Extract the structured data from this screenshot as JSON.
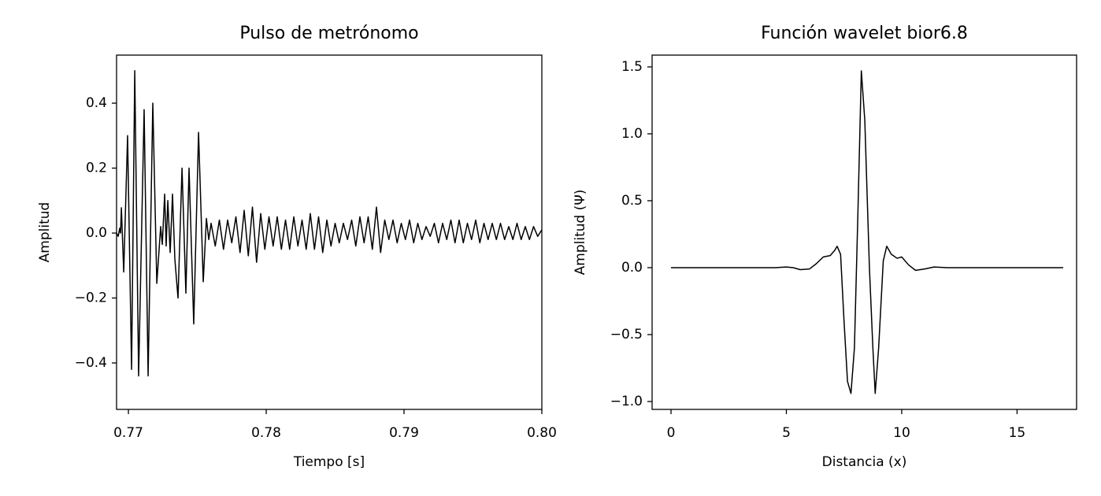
{
  "chart_data": [
    {
      "type": "line",
      "title": "Pulso de metrónomo",
      "x_label": "Tiempo [s]",
      "y_label": "Amplitud",
      "color": "#000000",
      "xlim": [
        0.76914,
        0.8
      ],
      "ylim": [
        -0.543,
        0.548
      ],
      "xticks": [
        0.77,
        0.78,
        0.79,
        {
          "value": 0.8,
          "label": "0.80"
        }
      ],
      "yticks": [
        {
          "value": -0.4,
          "label": "−0.4"
        },
        {
          "value": -0.2,
          "label": "−0.2"
        },
        {
          "value": 0,
          "label": "0.0"
        },
        0.2,
        0.4
      ],
      "x": [
        0.76914,
        0.76926,
        0.76937,
        0.76943,
        0.76949,
        0.76966,
        0.76994,
        0.77023,
        0.77046,
        0.77074,
        0.77114,
        0.77143,
        0.77177,
        0.77206,
        0.77234,
        0.77246,
        0.77263,
        0.77274,
        0.77286,
        0.77303,
        0.7732,
        0.77337,
        0.7736,
        0.77389,
        0.77417,
        0.7744,
        0.77474,
        0.77509,
        0.77543,
        0.77566,
        0.77583,
        0.776,
        0.7763,
        0.7766,
        0.7769,
        0.7772,
        0.7775,
        0.7778,
        0.7781,
        0.7784,
        0.7787,
        0.779,
        0.7793,
        0.7796,
        0.7799,
        0.7802,
        0.7805,
        0.7808,
        0.7811,
        0.7814,
        0.7817,
        0.782,
        0.7823,
        0.7826,
        0.7829,
        0.7832,
        0.7835,
        0.7838,
        0.7841,
        0.7844,
        0.7847,
        0.785,
        0.7853,
        0.7856,
        0.7859,
        0.7862,
        0.7865,
        0.7868,
        0.7871,
        0.7874,
        0.7877,
        0.788,
        0.7883,
        0.7886,
        0.7889,
        0.7892,
        0.7895,
        0.7898,
        0.7901,
        0.7904,
        0.7907,
        0.791,
        0.7913,
        0.7916,
        0.7919,
        0.7922,
        0.7925,
        0.7928,
        0.7931,
        0.7934,
        0.7937,
        0.794,
        0.7943,
        0.7946,
        0.7949,
        0.7952,
        0.7955,
        0.7958,
        0.7961,
        0.7964,
        0.7967,
        0.797,
        0.7973,
        0.7976,
        0.7979,
        0.7982,
        0.7985,
        0.7988,
        0.7991,
        0.7994,
        0.7997,
        0.8
      ],
      "values": [
        0,
        -0.01,
        0.015,
        0,
        0.078,
        -0.12,
        0.3,
        -0.42,
        0.5,
        -0.44,
        0.38,
        -0.44,
        0.4,
        -0.155,
        0.02,
        -0.035,
        0.12,
        -0.04,
        0.1,
        -0.06,
        0.12,
        -0.08,
        -0.2,
        0.2,
        -0.185,
        0.2,
        -0.28,
        0.31,
        -0.15,
        0.045,
        -0.02,
        0.03,
        -0.04,
        0.04,
        -0.05,
        0.04,
        -0.03,
        0.05,
        -0.06,
        0.07,
        -0.07,
        0.08,
        -0.09,
        0.06,
        -0.05,
        0.05,
        -0.04,
        0.05,
        -0.05,
        0.04,
        -0.05,
        0.05,
        -0.04,
        0.04,
        -0.05,
        0.06,
        -0.05,
        0.05,
        -0.06,
        0.04,
        -0.04,
        0.03,
        -0.03,
        0.03,
        -0.02,
        0.04,
        -0.04,
        0.05,
        -0.03,
        0.05,
        -0.05,
        0.08,
        -0.06,
        0.04,
        -0.02,
        0.04,
        -0.03,
        0.03,
        -0.02,
        0.04,
        -0.03,
        0.03,
        -0.02,
        0.02,
        -0.01,
        0.03,
        -0.03,
        0.03,
        -0.02,
        0.04,
        -0.03,
        0.04,
        -0.03,
        0.03,
        -0.02,
        0.04,
        -0.03,
        0.03,
        -0.02,
        0.03,
        -0.02,
        0.03,
        -0.02,
        0.02,
        -0.02,
        0.03,
        -0.02,
        0.02,
        -0.02,
        0.02,
        -0.01,
        0.01
      ]
    },
    {
      "type": "line",
      "title": "Función wavelet bior6.8",
      "x_label": "Distancia (x)",
      "y_label": "Amplitud (Ψ)",
      "color": "#000000",
      "xlim": [
        -0.82,
        17.58
      ],
      "ylim": [
        -1.059,
        1.588
      ],
      "xticks": [
        0,
        5,
        10,
        15
      ],
      "yticks": [
        {
          "value": -1,
          "label": "−1.0"
        },
        {
          "value": -0.5,
          "label": "−0.5"
        },
        {
          "value": 0,
          "label": "0.0"
        },
        0.5,
        {
          "value": 1,
          "label": "1.0"
        },
        1.5
      ],
      "x": [
        0,
        4.5,
        5,
        5.3,
        5.6,
        6,
        6.3,
        6.6,
        6.9,
        7.1,
        7.2,
        7.35,
        7.5,
        7.65,
        7.8,
        7.95,
        8.1,
        8.25,
        8.4,
        8.6,
        8.75,
        8.85,
        9,
        9.2,
        9.35,
        9.55,
        9.8,
        10,
        10.3,
        10.6,
        11,
        11.4,
        12,
        17
      ],
      "values": [
        0,
        0,
        0.005,
        0,
        -0.015,
        -0.01,
        0.03,
        0.08,
        0.09,
        0.13,
        0.16,
        0.1,
        -0.4,
        -0.85,
        -0.94,
        -0.6,
        0.4,
        1.47,
        1.1,
        0,
        -0.6,
        -0.94,
        -0.6,
        0.05,
        0.16,
        0.1,
        0.07,
        0.08,
        0.02,
        -0.02,
        -0.01,
        0.005,
        0,
        0
      ]
    }
  ]
}
